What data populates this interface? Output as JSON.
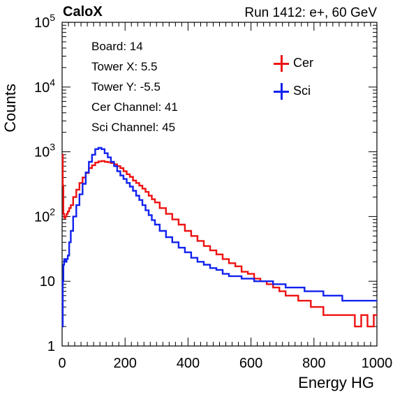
{
  "header": {
    "left": "CaloX",
    "right": "Run 1412: e+, 60 GeV"
  },
  "info_box": {
    "lines": [
      "Board: 14",
      "Tower X: 5.5",
      "Tower Y: -5.5",
      "Cer Channel: 41",
      "Sci Channel: 45"
    ]
  },
  "chart_data": {
    "type": "line",
    "xlabel": "Energy HG",
    "ylabel": "Counts",
    "xlim": [
      0,
      1000
    ],
    "ylim": [
      1,
      100000
    ],
    "ylog": true,
    "grid": false,
    "legend_position": "top-right",
    "x_ticks": [
      "0",
      "200",
      "400",
      "600",
      "800",
      "1000"
    ],
    "y_tick_labels": [
      {
        "base": "1",
        "exp": ""
      },
      {
        "base": "10",
        "exp": ""
      },
      {
        "base": "10",
        "exp": "2"
      },
      {
        "base": "10",
        "exp": "3"
      },
      {
        "base": "10",
        "exp": "4"
      },
      {
        "base": "10",
        "exp": "5"
      }
    ],
    "series": [
      {
        "name": "Cer",
        "color": "#ee1111",
        "x": [
          1,
          3,
          5,
          8,
          12,
          16,
          20,
          25,
          30,
          40,
          50,
          60,
          70,
          80,
          90,
          100,
          110,
          120,
          130,
          140,
          150,
          160,
          170,
          180,
          190,
          200,
          210,
          220,
          230,
          240,
          250,
          260,
          270,
          280,
          290,
          300,
          320,
          340,
          360,
          380,
          400,
          420,
          440,
          460,
          480,
          500,
          520,
          540,
          560,
          580,
          600,
          620,
          640,
          660,
          680,
          700,
          720,
          740,
          760,
          780,
          800,
          820,
          840,
          860,
          880,
          900,
          920,
          940,
          960,
          980,
          1000
        ],
        "y": [
          900,
          300,
          110,
          95,
          100,
          110,
          120,
          135,
          150,
          200,
          260,
          330,
          400,
          470,
          560,
          620,
          680,
          710,
          720,
          700,
          690,
          670,
          640,
          600,
          560,
          500,
          450,
          410,
          360,
          330,
          300,
          270,
          240,
          210,
          185,
          165,
          135,
          110,
          90,
          75,
          60,
          50,
          42,
          35,
          30,
          26,
          22,
          19,
          17,
          14,
          13,
          11,
          10,
          9,
          8,
          7,
          6,
          6,
          5,
          5,
          4,
          4,
          3,
          3,
          3,
          3,
          3,
          2,
          3,
          2,
          3
        ]
      },
      {
        "name": "Sci",
        "color": "#1122ee",
        "x": [
          1,
          3,
          5,
          8,
          12,
          16,
          20,
          25,
          30,
          40,
          50,
          60,
          70,
          80,
          90,
          100,
          110,
          120,
          130,
          140,
          150,
          160,
          170,
          180,
          190,
          200,
          210,
          220,
          230,
          240,
          250,
          260,
          270,
          280,
          290,
          300,
          320,
          340,
          360,
          380,
          400,
          420,
          440,
          460,
          480,
          500,
          520,
          540,
          560,
          580,
          600,
          620,
          640,
          660,
          680,
          700,
          720,
          740,
          760,
          780,
          800,
          820,
          840,
          860,
          880,
          900,
          920,
          940,
          960,
          980,
          1000
        ],
        "y": [
          2,
          10,
          18,
          22,
          20,
          22,
          25,
          40,
          60,
          100,
          150,
          220,
          320,
          480,
          700,
          900,
          1100,
          1150,
          1100,
          950,
          820,
          700,
          600,
          500,
          430,
          380,
          330,
          290,
          250,
          210,
          180,
          150,
          125,
          105,
          88,
          75,
          60,
          48,
          40,
          33,
          28,
          23,
          20,
          18,
          16,
          15,
          13,
          12,
          12,
          11,
          11,
          10,
          10,
          10,
          9,
          9,
          8,
          8,
          8,
          7,
          7,
          7,
          6,
          6,
          6,
          5,
          5,
          5,
          5,
          5,
          5
        ]
      }
    ]
  }
}
